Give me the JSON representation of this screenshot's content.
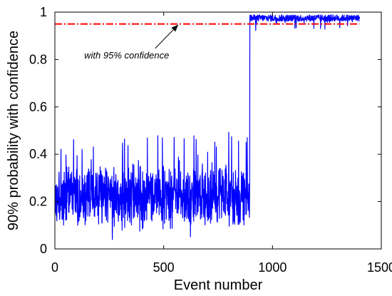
{
  "chart_data": {
    "type": "line",
    "title": "",
    "xlabel": "Event number",
    "ylabel": "90% probability with confidence",
    "xlim": [
      0,
      1500
    ],
    "ylim": [
      0,
      1
    ],
    "x_ticks": [
      0,
      500,
      1000,
      1500
    ],
    "y_ticks": [
      0,
      0.2,
      0.4,
      0.6,
      0.8,
      1
    ],
    "x_tick_labels": [
      "0",
      "500",
      "1000",
      "1500"
    ],
    "y_tick_labels": [
      "0",
      "0.2",
      "0.4",
      "0.6",
      "0.8",
      "1"
    ],
    "grid": false,
    "series": [
      {
        "color": "#0000ff",
        "style": "solid",
        "x_range": [
          1,
          1400
        ],
        "segments": [
          {
            "x_start": 1,
            "x_end": 895,
            "mean": 0.22,
            "min": 0.04,
            "max": 0.51
          },
          {
            "x_start": 896,
            "x_end": 1400,
            "mean": 0.975,
            "min": 0.91,
            "max": 0.995
          }
        ]
      },
      {
        "color": "#ff0000",
        "style": "dash-dot",
        "x": [
          0,
          1400
        ],
        "y": [
          0.95,
          0.95
        ]
      }
    ],
    "annotations": [
      {
        "text": "with 95% confidence",
        "arrow_to": [
          565,
          0.945
        ],
        "text_at": [
          330,
          0.82
        ]
      }
    ]
  }
}
